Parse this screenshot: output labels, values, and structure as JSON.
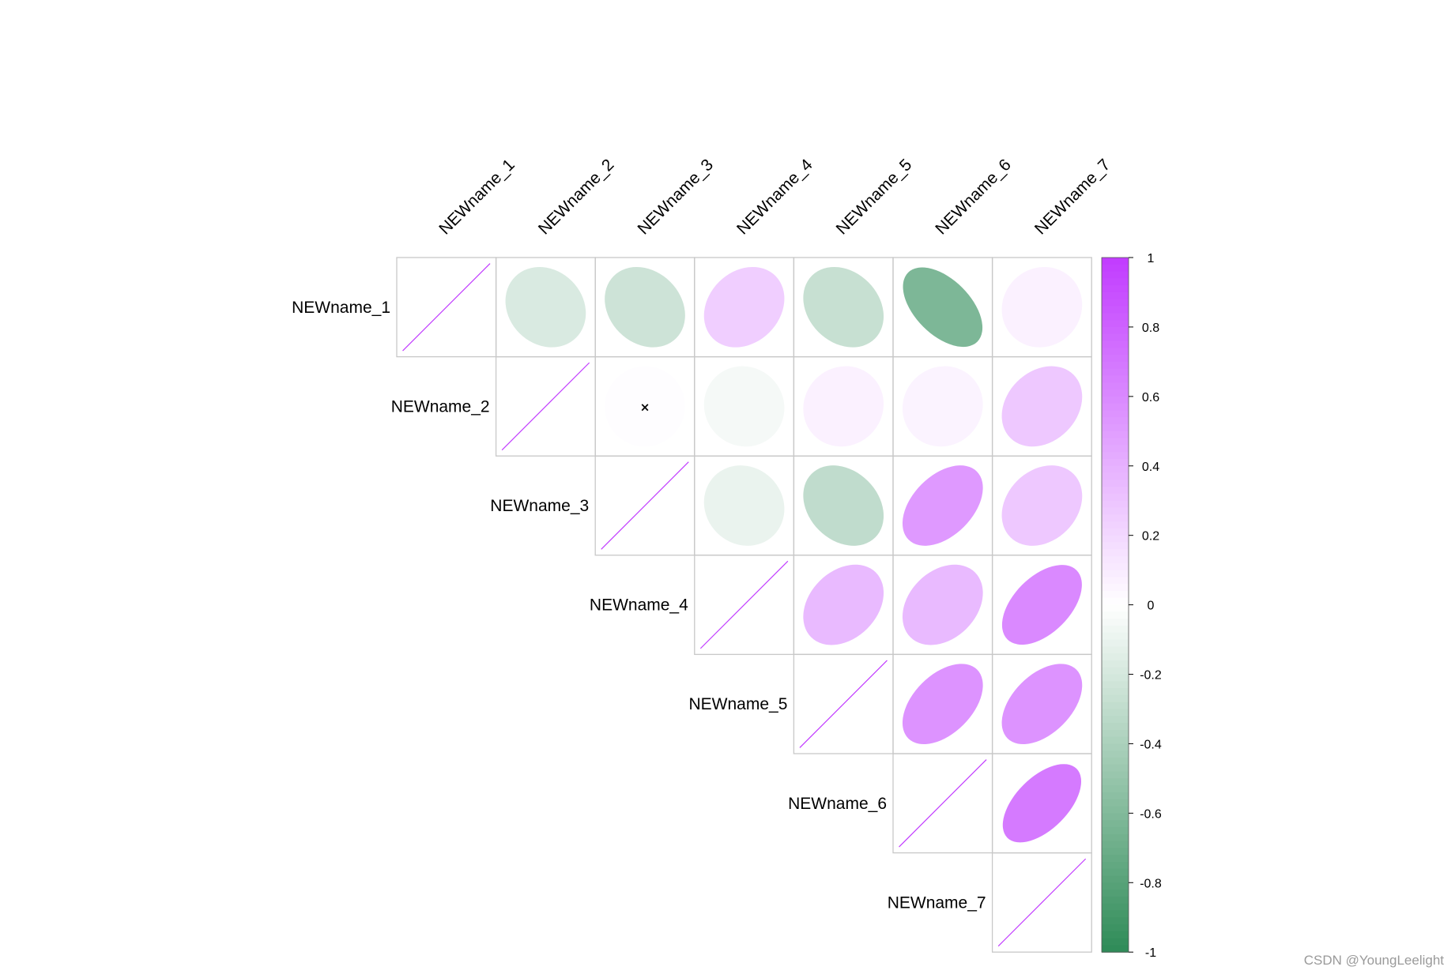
{
  "chart_data": {
    "type": "heatmap",
    "subtype": "correlation-ellipse-upper",
    "variables": [
      "NEWname_1",
      "NEWname_2",
      "NEWname_3",
      "NEWname_4",
      "NEWname_5",
      "NEWname_6",
      "NEWname_7"
    ],
    "matrix": [
      [
        1.0,
        -0.18,
        -0.24,
        0.25,
        -0.27,
        -0.62,
        0.07
      ],
      [
        -0.18,
        1.0,
        0.01,
        -0.05,
        0.07,
        0.06,
        0.28
      ],
      [
        -0.24,
        0.01,
        1.0,
        -0.1,
        -0.3,
        0.52,
        0.28
      ],
      [
        0.25,
        -0.05,
        -0.1,
        1.0,
        0.35,
        0.35,
        0.6
      ],
      [
        -0.27,
        0.07,
        -0.3,
        0.35,
        1.0,
        0.55,
        0.55
      ],
      [
        -0.62,
        0.06,
        0.52,
        0.35,
        0.55,
        1.0,
        0.68
      ],
      [
        0.07,
        0.28,
        0.28,
        0.6,
        0.55,
        0.68,
        1.0
      ]
    ],
    "insignificant": [
      [
        1,
        2
      ]
    ],
    "insignificant_marker": "×",
    "colorbar": {
      "range": [
        -1,
        1
      ],
      "ticks": [
        "1",
        "0.8",
        "0.6",
        "0.4",
        "0.2",
        "0",
        "-0.2",
        "-0.4",
        "-0.6",
        "-0.8",
        "-1"
      ],
      "colors": {
        "negative": "#2e8b57",
        "zero": "#ffffff",
        "positive": "#c13bff"
      }
    },
    "grid_color": "#c8c8c8"
  },
  "watermark": "CSDN @YoungLeelight"
}
